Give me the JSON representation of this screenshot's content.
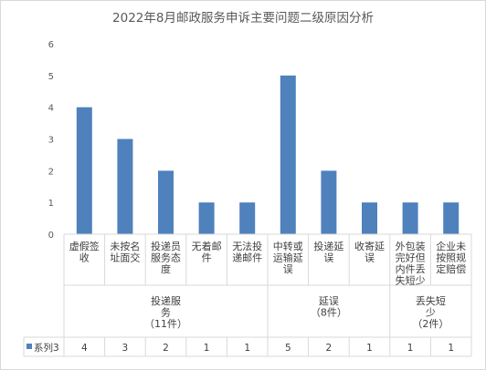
{
  "chart_data": {
    "type": "bar",
    "title": "2022年8月邮政服务申诉主要问题二级原因分析",
    "categories": [
      [
        "虚假签",
        "收"
      ],
      [
        "未按名",
        "址面交"
      ],
      [
        "投递员",
        "服务态",
        "度"
      ],
      [
        "无着邮",
        "件"
      ],
      [
        "无法投",
        "递邮件"
      ],
      [
        "中转或",
        "运输延",
        "误"
      ],
      [
        "投递延",
        "误"
      ],
      [
        "收寄延",
        "误"
      ],
      [
        "外包装",
        "完好但",
        "内件丢",
        "失短少"
      ],
      [
        "企业未",
        "按照规",
        "定赔偿"
      ]
    ],
    "groups": [
      {
        "label": [
          "投递服",
          "务",
          "（11件）"
        ],
        "span": [
          0,
          4
        ]
      },
      {
        "label": [
          "延误",
          "（8件）"
        ],
        "span": [
          5,
          7
        ]
      },
      {
        "label": [
          "丢失短",
          "少",
          "（2件）"
        ],
        "span": [
          8,
          9
        ]
      }
    ],
    "series": [
      {
        "name": "系列3",
        "values": [
          4,
          3,
          2,
          1,
          1,
          5,
          2,
          1,
          1,
          1
        ]
      }
    ],
    "ylim": [
      0,
      6
    ],
    "yticks": [
      0,
      1,
      2,
      3,
      4,
      5,
      6
    ],
    "grid": false,
    "legend": "data-table",
    "bar_color": "#4f81bd",
    "axis_color": "#d9d9d9",
    "text_color": "#404040"
  }
}
